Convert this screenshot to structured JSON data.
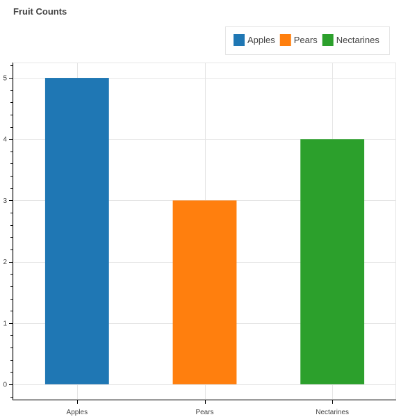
{
  "chart_data": {
    "type": "bar",
    "title": "Fruit Counts",
    "categories": [
      "Apples",
      "Pears",
      "Nectarines"
    ],
    "values": [
      5,
      3,
      4
    ],
    "colors": [
      "#1f77b4",
      "#ff7f0e",
      "#2ca02c"
    ],
    "xlabel": "",
    "ylabel": "",
    "ylim": [
      -0.25,
      5.25
    ],
    "yticks": [
      0,
      1,
      2,
      3,
      4,
      5
    ],
    "grid": true,
    "legend": {
      "placement": "top-right",
      "entries": [
        "Apples",
        "Pears",
        "Nectarines"
      ]
    }
  }
}
